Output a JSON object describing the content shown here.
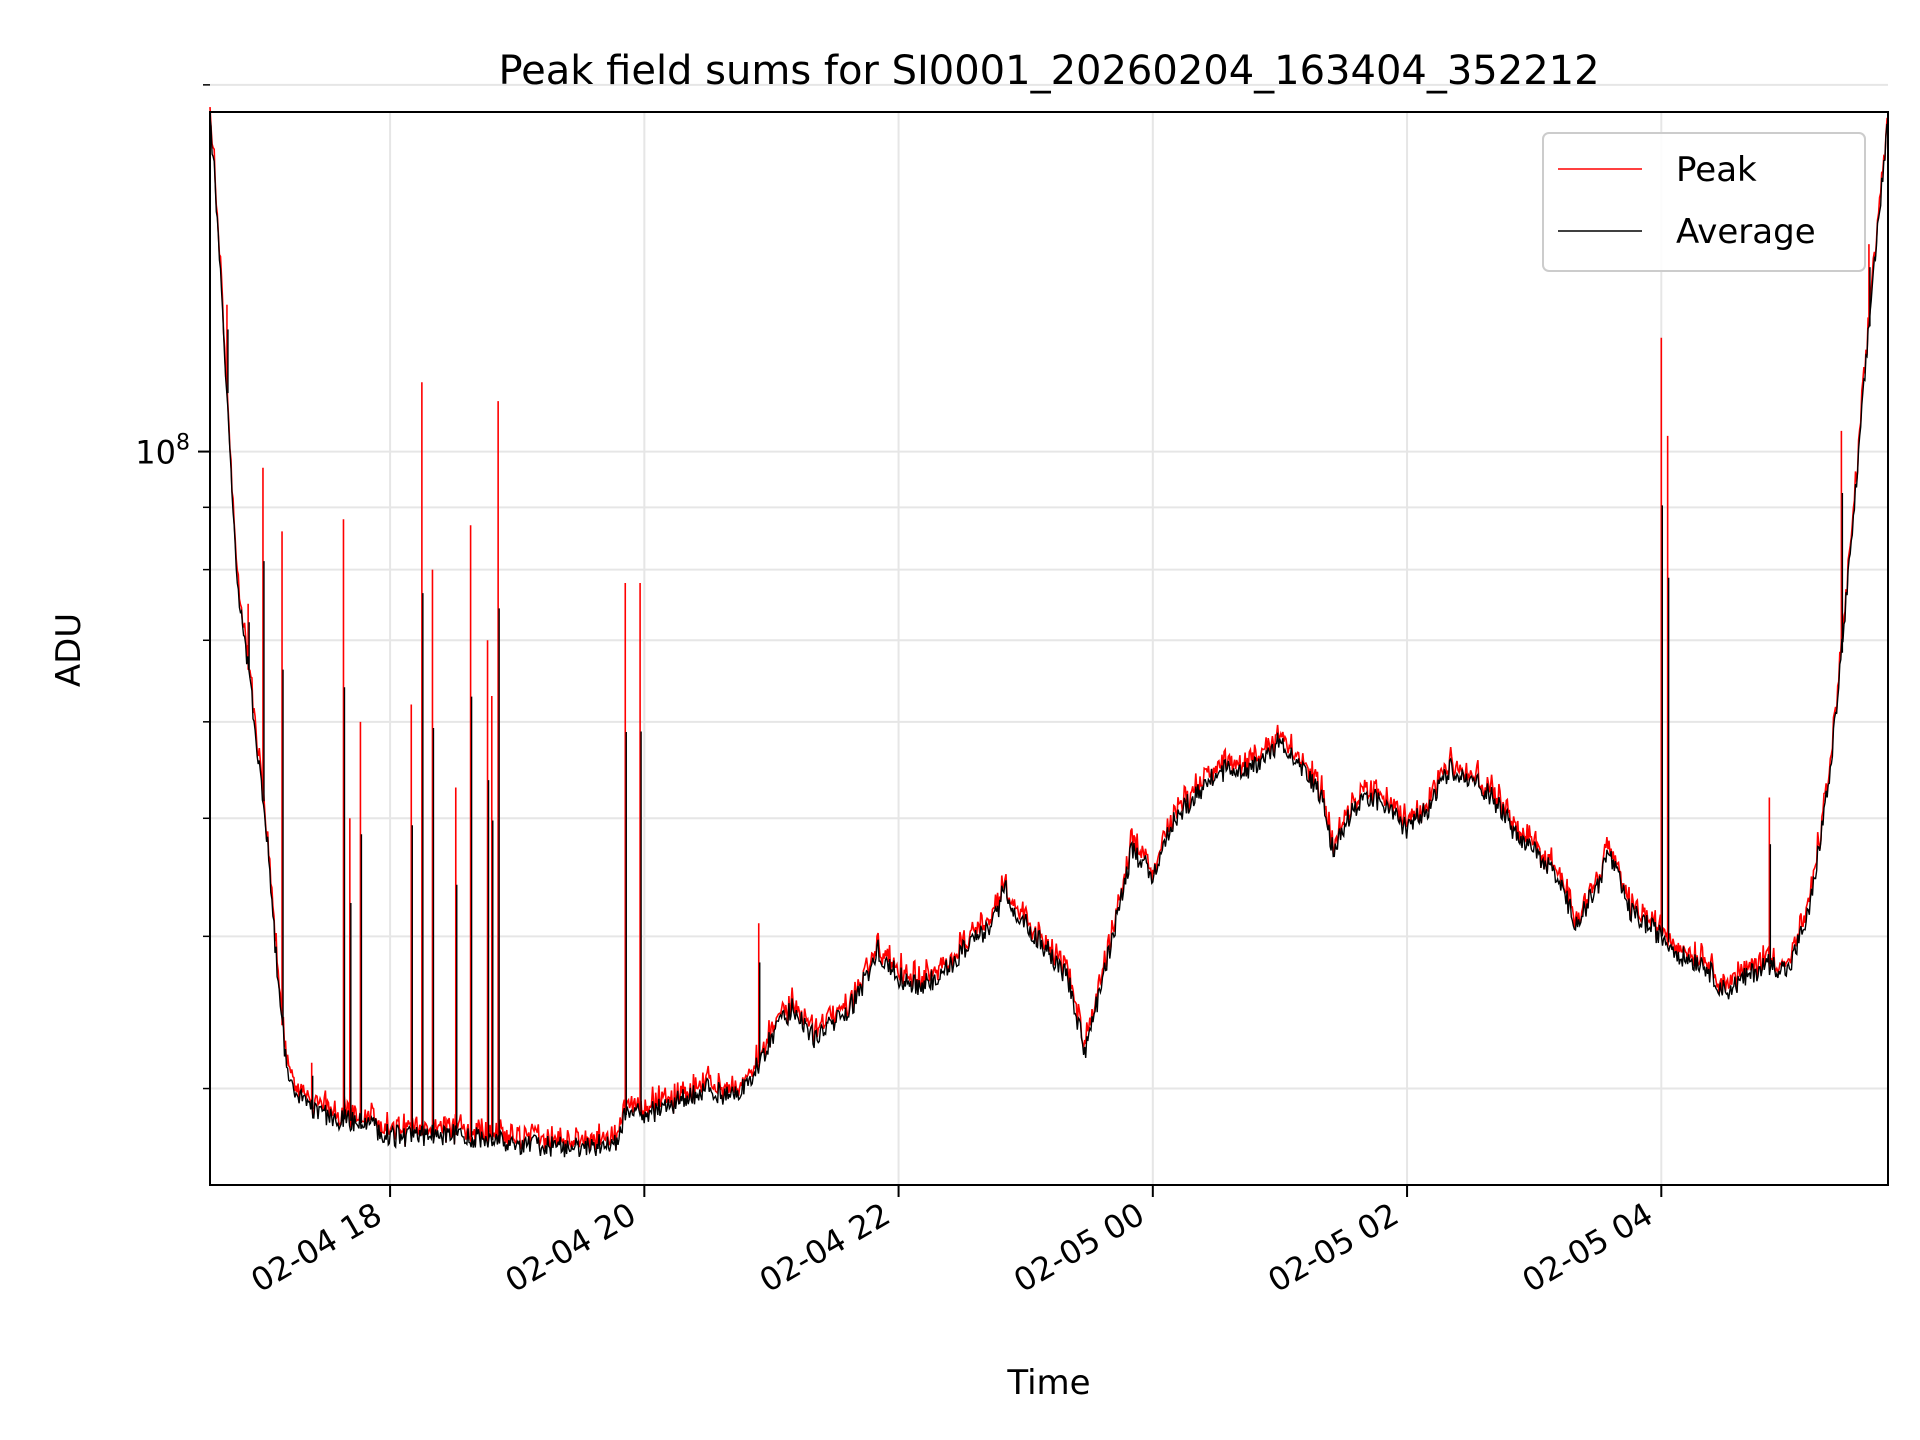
{
  "chart_data": {
    "type": "line",
    "title": "Peak field sums for SI0001_20260204_163404_352212",
    "xlabel": "Time",
    "ylabel": "ADU",
    "y_scale": "log",
    "grid": true,
    "legend_position": "top-right",
    "xlim": [
      "2026-02-04 16:35",
      "2026-02-05 05:47"
    ],
    "ylim": [
      25000000,
      190000000
    ],
    "x_ticks": [
      {
        "t": "2026-02-04 18:00",
        "label": "02-04 18"
      },
      {
        "t": "2026-02-04 20:00",
        "label": "02-04 20"
      },
      {
        "t": "2026-02-04 22:00",
        "label": "02-04 22"
      },
      {
        "t": "2026-02-05 00:00",
        "label": "02-05 00"
      },
      {
        "t": "2026-02-05 02:00",
        "label": "02-05 02"
      },
      {
        "t": "2026-02-05 04:00",
        "label": "02-05 04"
      }
    ],
    "y_major_tick": {
      "value": 100000000,
      "label_base": "10",
      "label_exp": "8"
    },
    "y_minor_ticks": [
      30000000,
      40000000,
      50000000,
      60000000,
      70000000,
      80000000,
      90000000,
      200000000
    ],
    "series": [
      {
        "name": "Peak",
        "color": "#ff0000"
      },
      {
        "name": "Average",
        "color": "#000000"
      }
    ],
    "average_points": [
      [
        "2026-02-04 16:35",
        186000000
      ],
      [
        "2026-02-04 16:37",
        170000000
      ],
      [
        "2026-02-04 16:42",
        120000000
      ],
      [
        "2026-02-04 16:48",
        78000000
      ],
      [
        "2026-02-04 16:55",
        62000000
      ],
      [
        "2026-02-04 17:02",
        48000000
      ],
      [
        "2026-02-04 17:08",
        35000000
      ],
      [
        "2026-02-04 17:12",
        30500000
      ],
      [
        "2026-02-04 17:20",
        29000000
      ],
      [
        "2026-02-04 17:30",
        28500000
      ],
      [
        "2026-02-04 17:50",
        28000000
      ],
      [
        "2026-02-04 18:00",
        27400000
      ],
      [
        "2026-02-04 18:30",
        27500000
      ],
      [
        "2026-02-04 19:00",
        27000000
      ],
      [
        "2026-02-04 19:30",
        26800000
      ],
      [
        "2026-02-04 19:48",
        27200000
      ],
      [
        "2026-02-04 19:52",
        29000000
      ],
      [
        "2026-02-04 20:00",
        28500000
      ],
      [
        "2026-02-04 20:20",
        29500000
      ],
      [
        "2026-02-04 20:30",
        30000000
      ],
      [
        "2026-02-04 20:40",
        29500000
      ],
      [
        "2026-02-04 20:50",
        30500000
      ],
      [
        "2026-02-04 21:00",
        33000000
      ],
      [
        "2026-02-04 21:10",
        35000000
      ],
      [
        "2026-02-04 21:20",
        33000000
      ],
      [
        "2026-02-04 21:30",
        34000000
      ],
      [
        "2026-02-04 21:40",
        35500000
      ],
      [
        "2026-02-04 21:50",
        39000000
      ],
      [
        "2026-02-04 22:00",
        37000000
      ],
      [
        "2026-02-04 22:10",
        36500000
      ],
      [
        "2026-02-04 22:20",
        37000000
      ],
      [
        "2026-02-04 22:30",
        39000000
      ],
      [
        "2026-02-04 22:45",
        41000000
      ],
      [
        "2026-02-04 22:50",
        44000000
      ],
      [
        "2026-02-04 22:55",
        42000000
      ],
      [
        "2026-02-04 23:10",
        39000000
      ],
      [
        "2026-02-04 23:20",
        37000000
      ],
      [
        "2026-02-04 23:28",
        32000000
      ],
      [
        "2026-02-04 23:35",
        36000000
      ],
      [
        "2026-02-04 23:45",
        43000000
      ],
      [
        "2026-02-04 23:50",
        47000000
      ],
      [
        "2026-02-05 00:00",
        45000000
      ],
      [
        "2026-02-05 00:10",
        50000000
      ],
      [
        "2026-02-05 00:20",
        52000000
      ],
      [
        "2026-02-05 00:30",
        54500000
      ],
      [
        "2026-02-05 00:40",
        55000000
      ],
      [
        "2026-02-05 00:50",
        55000000
      ],
      [
        "2026-02-05 01:00",
        58000000
      ],
      [
        "2026-02-05 01:10",
        55000000
      ],
      [
        "2026-02-05 01:20",
        52000000
      ],
      [
        "2026-02-05 01:25",
        47000000
      ],
      [
        "2026-02-05 01:35",
        51000000
      ],
      [
        "2026-02-05 01:45",
        52000000
      ],
      [
        "2026-02-05 02:00",
        49000000
      ],
      [
        "2026-02-05 02:10",
        51000000
      ],
      [
        "2026-02-05 02:20",
        55000000
      ],
      [
        "2026-02-05 02:30",
        54000000
      ],
      [
        "2026-02-05 02:40",
        52000000
      ],
      [
        "2026-02-05 02:50",
        49000000
      ],
      [
        "2026-02-05 03:00",
        47000000
      ],
      [
        "2026-02-05 03:10",
        45000000
      ],
      [
        "2026-02-05 03:20",
        41000000
      ],
      [
        "2026-02-05 03:30",
        44000000
      ],
      [
        "2026-02-05 03:35",
        47000000
      ],
      [
        "2026-02-05 03:45",
        42000000
      ],
      [
        "2026-02-05 04:00",
        40000000
      ],
      [
        "2026-02-05 04:10",
        38500000
      ],
      [
        "2026-02-05 04:20",
        38000000
      ],
      [
        "2026-02-05 04:30",
        36000000
      ],
      [
        "2026-02-05 04:40",
        37000000
      ],
      [
        "2026-02-05 04:50",
        38000000
      ],
      [
        "2026-02-05 05:00",
        37500000
      ],
      [
        "2026-02-05 05:10",
        42000000
      ],
      [
        "2026-02-05 05:20",
        55000000
      ],
      [
        "2026-02-05 05:30",
        85000000
      ],
      [
        "2026-02-05 05:40",
        140000000
      ],
      [
        "2026-02-05 05:47",
        186000000
      ]
    ],
    "peak_spikes": [
      [
        "2026-02-04 16:43",
        132000000
      ],
      [
        "2026-02-04 16:53",
        75000000
      ],
      [
        "2026-02-04 17:00",
        97000000
      ],
      [
        "2026-02-04 17:09",
        86000000
      ],
      [
        "2026-02-04 17:23",
        31500000
      ],
      [
        "2026-02-04 17:38",
        88000000
      ],
      [
        "2026-02-04 17:41",
        50000000
      ],
      [
        "2026-02-04 17:46",
        60000000
      ],
      [
        "2026-02-04 18:10",
        62000000
      ],
      [
        "2026-02-04 18:15",
        114000000
      ],
      [
        "2026-02-04 18:20",
        80000000
      ],
      [
        "2026-02-04 18:31",
        53000000
      ],
      [
        "2026-02-04 18:38",
        87000000
      ],
      [
        "2026-02-04 18:46",
        70000000
      ],
      [
        "2026-02-04 18:48",
        63000000
      ],
      [
        "2026-02-04 18:51",
        110000000
      ],
      [
        "2026-02-04 19:51",
        78000000
      ],
      [
        "2026-02-04 19:58",
        78000000
      ],
      [
        "2026-02-04 20:54",
        41000000
      ],
      [
        "2026-02-05 04:00",
        124000000
      ],
      [
        "2026-02-05 04:03",
        103000000
      ],
      [
        "2026-02-05 04:51",
        52000000
      ],
      [
        "2026-02-05 05:25",
        104000000
      ],
      [
        "2026-02-05 05:38",
        148000000
      ]
    ]
  }
}
